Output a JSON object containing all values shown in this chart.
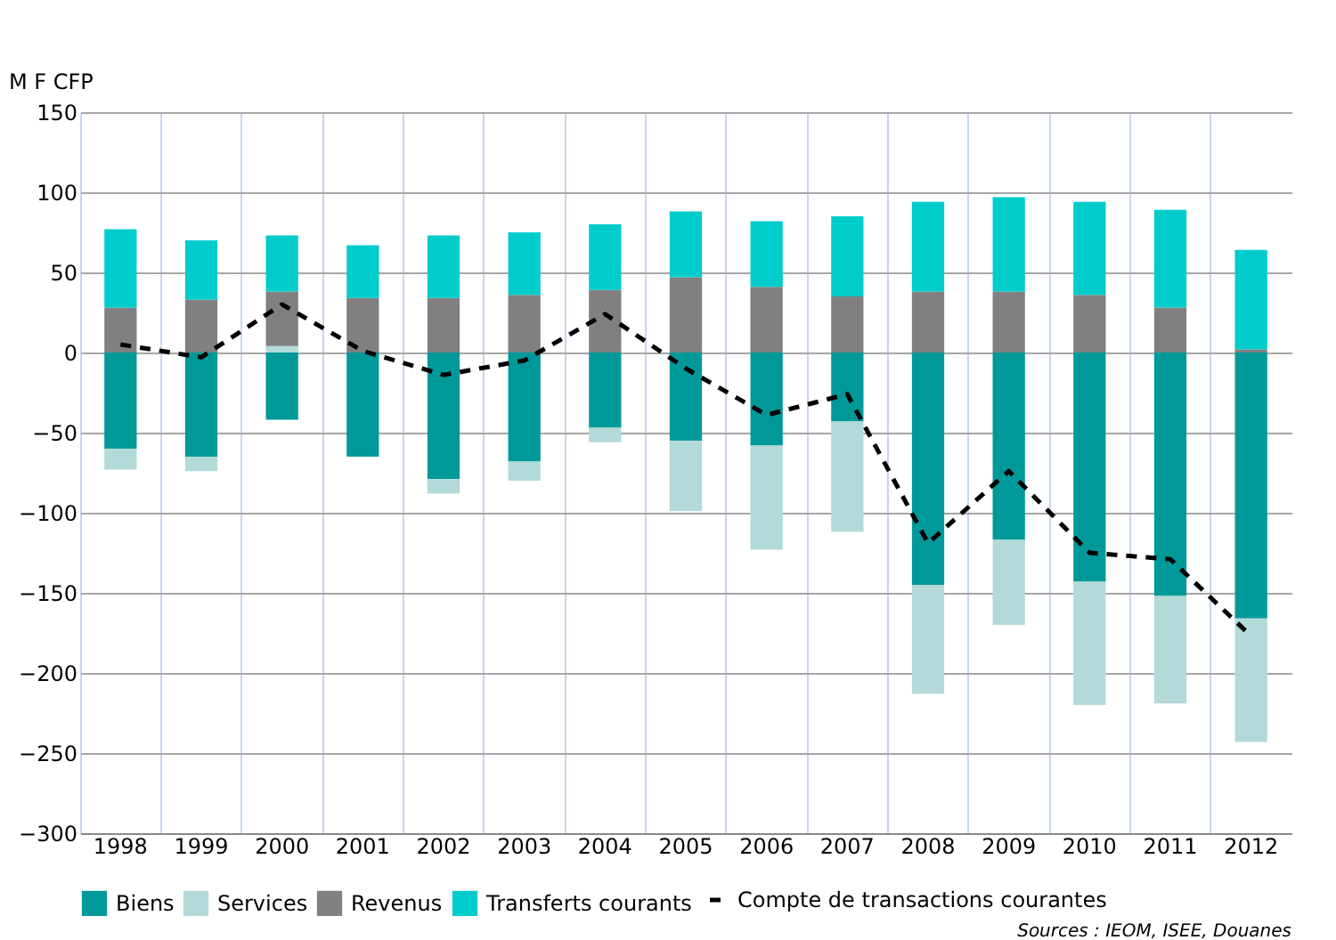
{
  "chart_data": {
    "type": "bar",
    "stacked": true,
    "ylabel": "M F CFP",
    "categories": [
      "1998",
      "1999",
      "2000",
      "2001",
      "2002",
      "2003",
      "2004",
      "2005",
      "2006",
      "2007",
      "2008",
      "2009",
      "2010",
      "2011",
      "2012"
    ],
    "series": [
      {
        "name": "Biens",
        "color": "#009999",
        "values": [
          -60,
          -65,
          -42,
          -65,
          -79,
          -68,
          -47,
          -55,
          -58,
          -43,
          -145,
          -117,
          -143,
          -152,
          -166
        ]
      },
      {
        "name": "Services",
        "color": "#b3d9d9",
        "values": [
          -13,
          -9,
          4,
          null,
          -9,
          -12,
          -9,
          -44,
          -65,
          -69,
          -68,
          -53,
          -77,
          -67,
          -77
        ]
      },
      {
        "name": "Revenus",
        "color": "#808080",
        "values": [
          28,
          33,
          34,
          34,
          34,
          36,
          39,
          47,
          41,
          35,
          38,
          38,
          36,
          28,
          2
        ]
      },
      {
        "name": "Transferts courants",
        "color": "#00cccc",
        "values": [
          49,
          37,
          35,
          33,
          39,
          39,
          41,
          41,
          41,
          50,
          56,
          59,
          58,
          61,
          62
        ]
      },
      {
        "name": "Compte de transactions courantes",
        "type": "line",
        "line_style": "dashed",
        "color": "#000000",
        "values": [
          5,
          -3,
          30,
          1,
          -14,
          -5,
          24,
          -10,
          -39,
          -26,
          -119,
          -74,
          -125,
          -129,
          -177
        ]
      }
    ],
    "ylim": [
      -300,
      150
    ],
    "yticks": [
      -300,
      -250,
      -200,
      -150,
      -100,
      -50,
      0,
      50,
      100,
      150
    ],
    "grid": true,
    "legend": "bottom",
    "annotations": [
      "Sources : IEOM, ISEE, Douanes"
    ]
  }
}
